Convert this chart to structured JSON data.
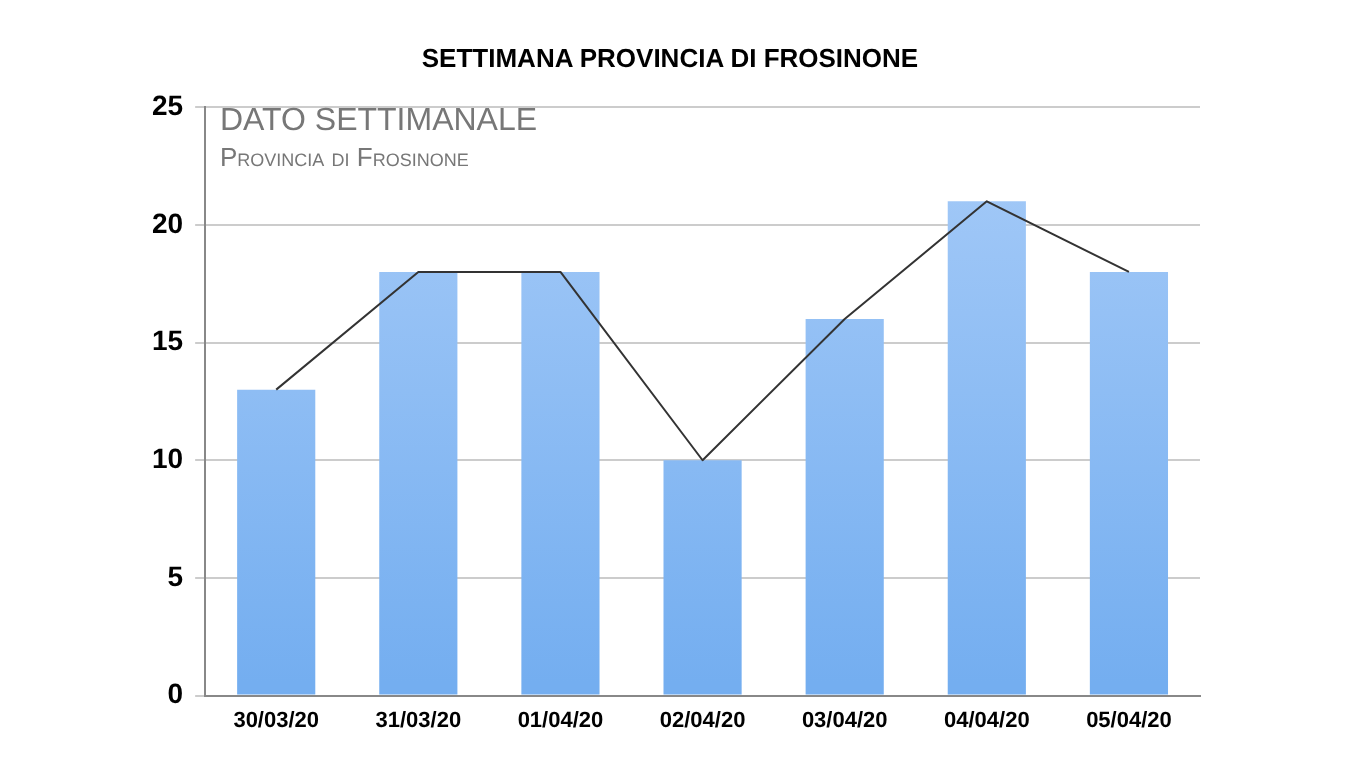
{
  "chart_data": {
    "type": "bar",
    "title": "SETTIMANA PROVINCIA DI FROSINONE",
    "categories": [
      "30/03/20",
      "31/03/20",
      "01/04/20",
      "02/04/20",
      "03/04/20",
      "04/04/20",
      "05/04/20"
    ],
    "series": [
      {
        "color": "#74aef0",
        "values": [
          13,
          18,
          18,
          10,
          16,
          21,
          18
        ]
      },
      {
        "type": "line",
        "color": "#333333",
        "values": [
          13,
          18,
          18,
          10,
          16,
          21,
          18
        ]
      }
    ],
    "ylim": [
      0,
      25
    ],
    "yticks": [
      0,
      5,
      10,
      15,
      20,
      25
    ],
    "grid": "y",
    "marker": "none",
    "annotations": [
      "DATO SETTIMANALE",
      "Provincia di Frosinone"
    ]
  }
}
